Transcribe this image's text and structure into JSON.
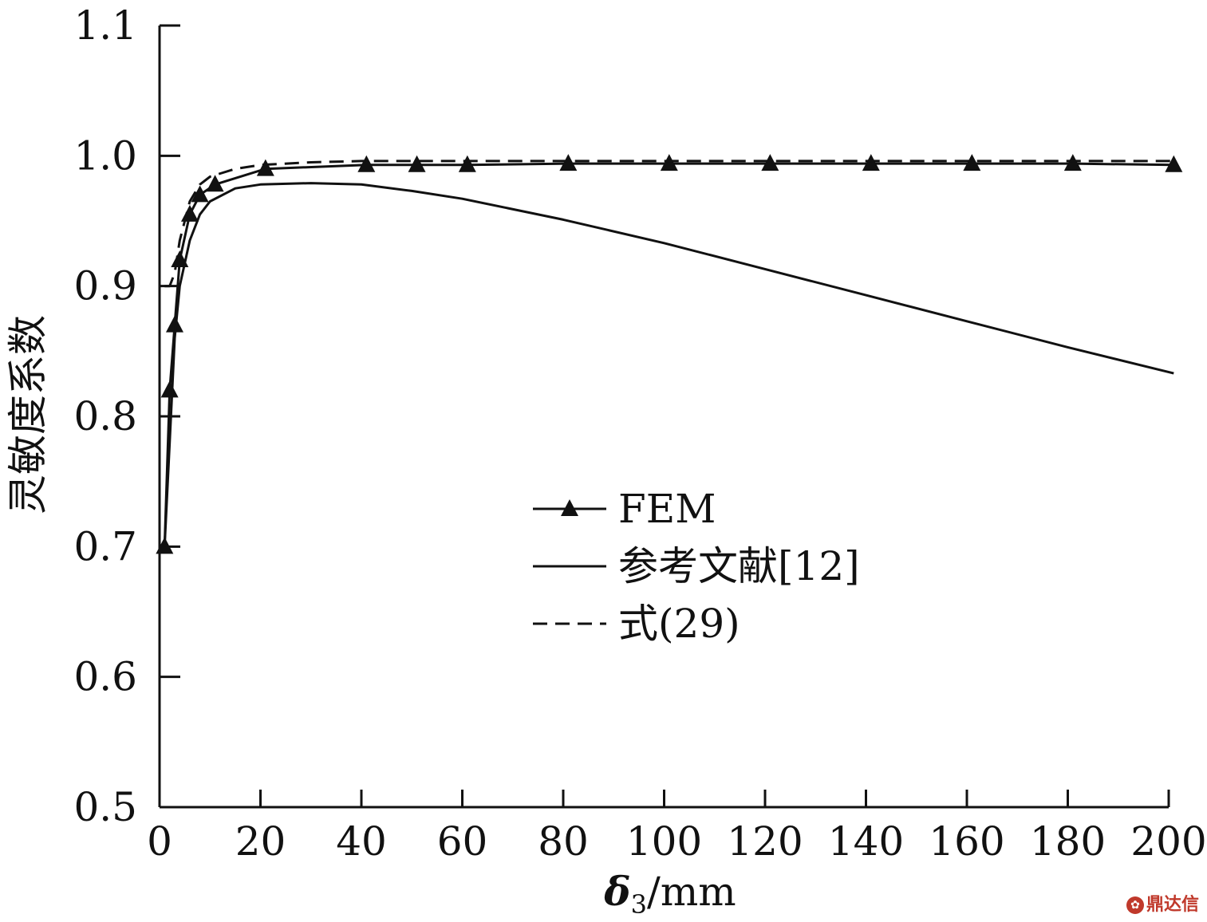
{
  "chart_data": {
    "type": "line",
    "xlabel": "δ",
    "xlabel_sub": "3",
    "xlabel_unit": "/mm",
    "ylabel": "灵敏度系数",
    "xlim": [
      0,
      200
    ],
    "ylim": [
      0.5,
      1.1
    ],
    "xticks": [
      0,
      20,
      40,
      60,
      80,
      100,
      120,
      140,
      160,
      180,
      200
    ],
    "yticks": [
      0.5,
      0.6,
      0.7,
      0.8,
      0.9,
      1.0,
      1.1
    ],
    "ytick_labels": [
      "0.5",
      "0.6",
      "0.7",
      "0.8",
      "0.9",
      "1.0",
      "1.1"
    ],
    "grid": false,
    "legend_position": "center",
    "series": [
      {
        "name": "FEM",
        "style": "solid-triangle",
        "x": [
          1,
          2,
          3,
          4,
          6,
          8,
          11,
          21,
          41,
          51,
          61,
          81,
          101,
          121,
          141,
          161,
          181,
          201
        ],
        "y": [
          0.7,
          0.82,
          0.87,
          0.92,
          0.955,
          0.97,
          0.978,
          0.99,
          0.993,
          0.993,
          0.993,
          0.994,
          0.994,
          0.994,
          0.994,
          0.994,
          0.994,
          0.993
        ]
      },
      {
        "name": "参考文献[12]",
        "style": "solid",
        "x": [
          1,
          2,
          3,
          4,
          6,
          8,
          10,
          15,
          20,
          30,
          40,
          50,
          60,
          80,
          100,
          120,
          140,
          160,
          180,
          201
        ],
        "y": [
          0.7,
          0.78,
          0.86,
          0.9,
          0.935,
          0.955,
          0.965,
          0.975,
          0.978,
          0.979,
          0.978,
          0.973,
          0.967,
          0.951,
          0.933,
          0.913,
          0.893,
          0.873,
          0.853,
          0.833
        ]
      },
      {
        "name": "式(29)",
        "style": "dashed",
        "x": [
          1,
          2,
          3,
          4,
          6,
          8,
          10,
          15,
          20,
          30,
          40,
          60,
          80,
          100,
          120,
          140,
          160,
          180,
          201
        ],
        "y": [
          0.9,
          0.9,
          0.91,
          0.935,
          0.965,
          0.978,
          0.984,
          0.99,
          0.993,
          0.995,
          0.996,
          0.996,
          0.996,
          0.996,
          0.996,
          0.996,
          0.996,
          0.996,
          0.996
        ]
      }
    ]
  },
  "watermark": {
    "icon": "logo-icon",
    "text": "鼎达信"
  }
}
